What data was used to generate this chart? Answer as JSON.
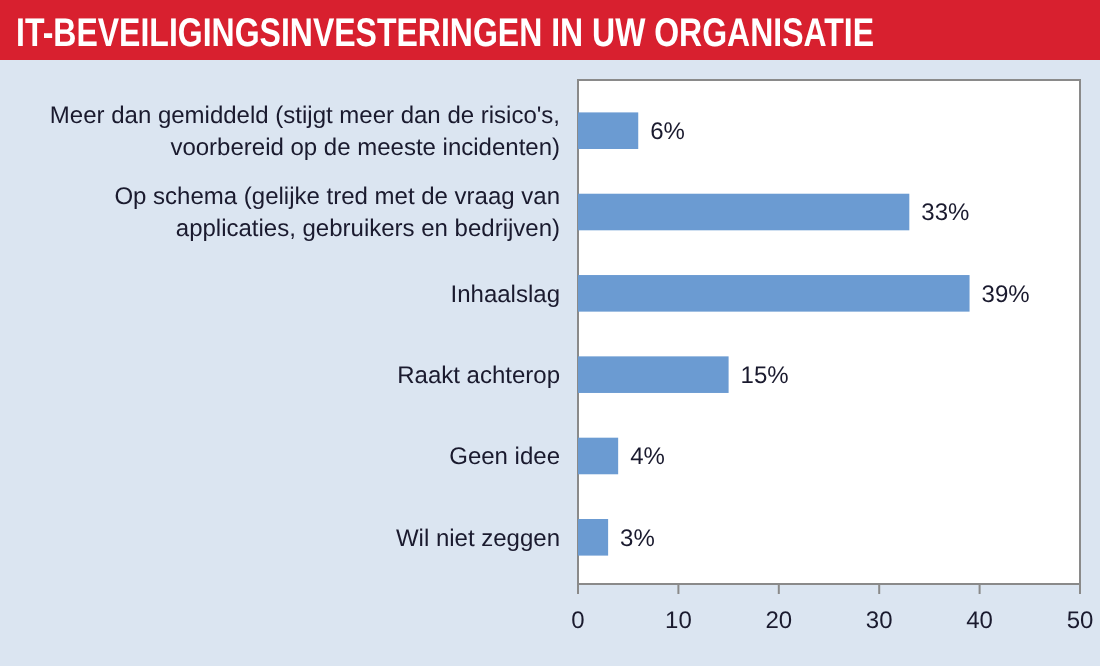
{
  "chart_data": {
    "type": "bar",
    "orientation": "horizontal",
    "title": "IT-BEVEILIGINGSINVESTERINGEN IN UW ORGANISATIE",
    "categories": [
      "Meer dan gemiddeld (stijgt meer dan de risico's, voorbereid op de meeste incidenten)",
      "Op schema (gelijke tred met de vraag van applicaties, gebruikers en bedrijven)",
      "Inhaalslag",
      "Raakt achterop",
      "Geen idee",
      "Wil niet zeggen"
    ],
    "values": [
      6,
      33,
      39,
      15,
      4,
      3
    ],
    "value_labels": [
      "6%",
      "33%",
      "39%",
      "15%",
      "4%",
      "3%"
    ],
    "color": "#6b9bd2",
    "xlim": [
      0,
      50
    ],
    "xticks": [
      0,
      10,
      20,
      30,
      40,
      50
    ],
    "grid": false
  }
}
